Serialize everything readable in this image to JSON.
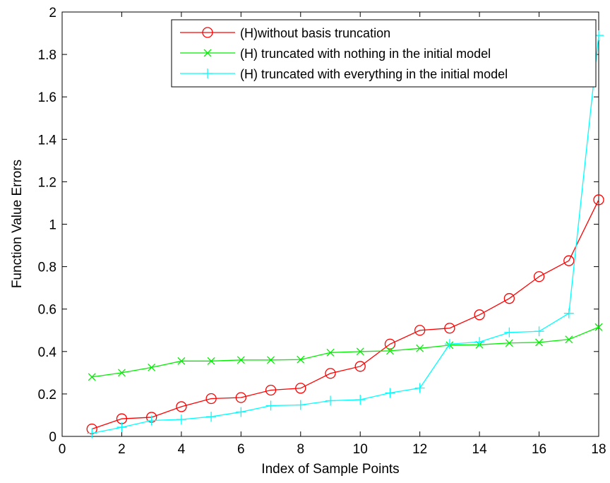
{
  "chart_data": {
    "type": "line",
    "xlabel": "Index of Sample Points",
    "ylabel": "Function Value Errors",
    "xlim": [
      0,
      18
    ],
    "ylim": [
      0,
      2
    ],
    "xticks": [
      0,
      2,
      4,
      6,
      8,
      10,
      12,
      14,
      16,
      18
    ],
    "yticks": [
      0,
      0.2,
      0.4,
      0.6,
      0.8,
      1,
      1.2,
      1.4,
      1.6,
      1.8,
      2
    ],
    "grid": false,
    "legend_position": "top-right",
    "x": [
      1,
      2,
      3,
      4,
      5,
      6,
      7,
      8,
      9,
      10,
      11,
      12,
      13,
      14,
      15,
      16,
      17,
      18
    ],
    "series": [
      {
        "name": "(H)without basis truncation",
        "color": "#ff0000",
        "marker": "circle",
        "values": [
          0.035,
          0.083,
          0.09,
          0.14,
          0.178,
          0.183,
          0.218,
          0.227,
          0.297,
          0.33,
          0.435,
          0.5,
          0.51,
          0.573,
          0.65,
          0.753,
          0.828,
          1.115
        ]
      },
      {
        "name": "(H) truncated with nothing in the initial model",
        "color": "#00ee00",
        "marker": "x",
        "values": [
          0.28,
          0.3,
          0.325,
          0.355,
          0.355,
          0.36,
          0.36,
          0.362,
          0.395,
          0.4,
          0.403,
          0.415,
          0.43,
          0.432,
          0.44,
          0.443,
          0.457,
          0.515
        ]
      },
      {
        "name": "(H) truncated with everything in the initial model",
        "color": "#00ffff",
        "marker": "plus",
        "values": [
          0.015,
          0.043,
          0.075,
          0.08,
          0.093,
          0.115,
          0.145,
          0.148,
          0.168,
          0.173,
          0.205,
          0.228,
          0.435,
          0.445,
          0.49,
          0.495,
          0.58,
          1.89
        ]
      }
    ]
  }
}
